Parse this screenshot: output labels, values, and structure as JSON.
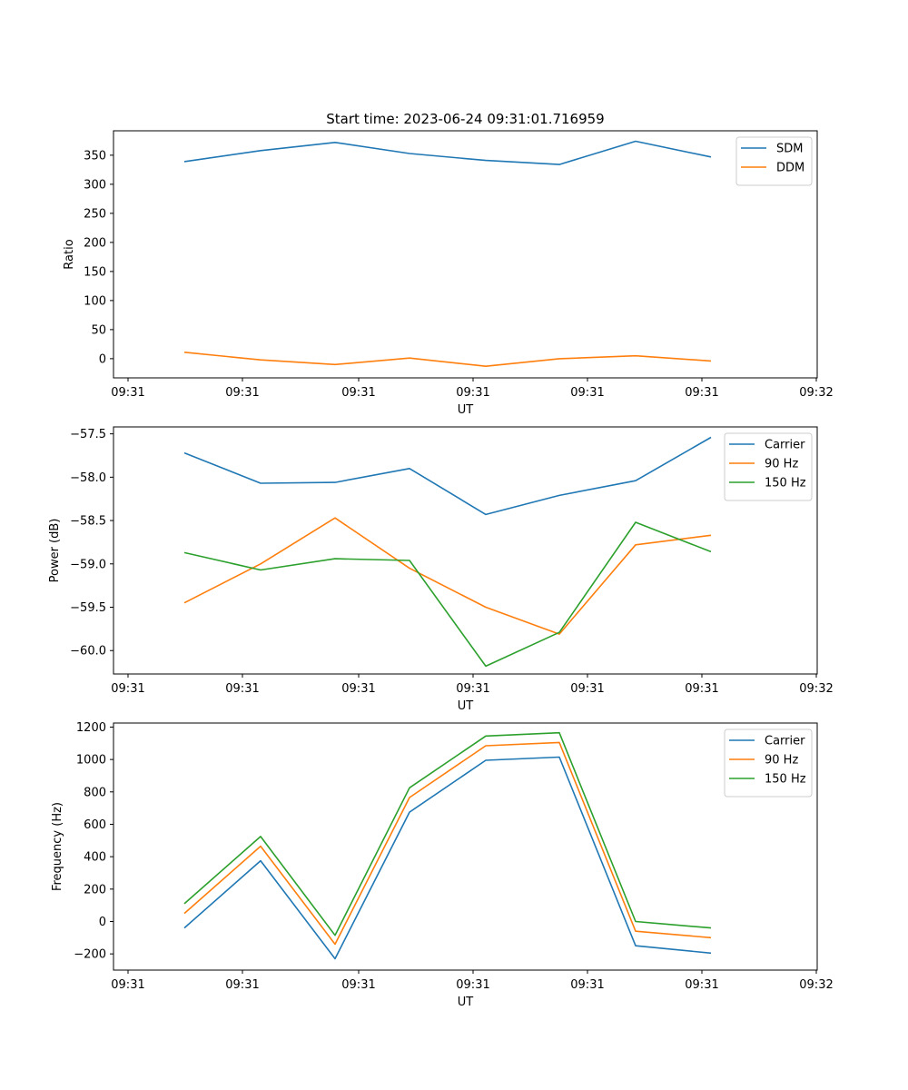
{
  "figure_title": "Start time: 2023-06-24 09:31:01.716959",
  "chart_data": [
    {
      "type": "line",
      "xlabel": "UT",
      "ylabel": "Ratio",
      "x_tick_labels": [
        "09:31",
        "09:31",
        "09:31",
        "09:31",
        "09:31",
        "09:31",
        "09:32"
      ],
      "y_ticks": [
        0,
        50,
        100,
        150,
        200,
        250,
        300,
        350
      ],
      "ylim": [
        -33,
        392
      ],
      "legend_position": "upper right",
      "series": [
        {
          "name": "SDM",
          "color": "#1f77b4",
          "values": [
            339,
            358,
            372,
            353,
            341,
            334,
            374,
            347
          ]
        },
        {
          "name": "DDM",
          "color": "#ff7f0e",
          "values": [
            11,
            -2,
            -10,
            1,
            -13,
            0,
            5,
            -4
          ]
        }
      ]
    },
    {
      "type": "line",
      "xlabel": "UT",
      "ylabel": "Power (dB)",
      "x_tick_labels": [
        "09:31",
        "09:31",
        "09:31",
        "09:31",
        "09:31",
        "09:31",
        "09:32"
      ],
      "y_ticks": [
        -60.0,
        -59.5,
        -59.0,
        -58.5,
        -58.0,
        -57.5
      ],
      "y_tick_labels": [
        "−60.0",
        "−59.5",
        "−59.0",
        "−58.5",
        "−58.0",
        "−57.5"
      ],
      "ylim": [
        -60.27,
        -57.42
      ],
      "legend_position": "upper right",
      "series": [
        {
          "name": "Carrier",
          "color": "#1f77b4",
          "values": [
            -57.72,
            -58.07,
            -58.06,
            -57.9,
            -58.43,
            -58.21,
            -58.04,
            -57.54
          ]
        },
        {
          "name": "90 Hz",
          "color": "#ff7f0e",
          "values": [
            -59.45,
            -59.0,
            -58.47,
            -59.05,
            -59.5,
            -59.81,
            -58.78,
            -58.67
          ]
        },
        {
          "name": "150 Hz",
          "color": "#2ca02c",
          "values": [
            -58.87,
            -59.07,
            -58.94,
            -58.96,
            -60.18,
            -59.79,
            -58.52,
            -58.86
          ]
        }
      ]
    },
    {
      "type": "line",
      "xlabel": "UT",
      "ylabel": "Frequency (Hz)",
      "x_tick_labels": [
        "09:31",
        "09:31",
        "09:31",
        "09:31",
        "09:31",
        "09:31",
        "09:32"
      ],
      "y_ticks": [
        -200,
        0,
        200,
        400,
        600,
        800,
        1000,
        1200
      ],
      "y_tick_labels": [
        "−200",
        "0",
        "200",
        "400",
        "600",
        "800",
        "1000",
        "1200"
      ],
      "ylim": [
        -300,
        1225
      ],
      "legend_position": "upper right",
      "series": [
        {
          "name": "Carrier",
          "color": "#1f77b4",
          "values": [
            -40,
            375,
            -230,
            675,
            995,
            1015,
            -150,
            -195
          ]
        },
        {
          "name": "90 Hz",
          "color": "#ff7f0e",
          "values": [
            50,
            465,
            -140,
            765,
            1085,
            1105,
            -60,
            -100
          ]
        },
        {
          "name": "150 Hz",
          "color": "#2ca02c",
          "values": [
            110,
            525,
            -85,
            825,
            1145,
            1165,
            0,
            -40
          ]
        }
      ]
    }
  ]
}
